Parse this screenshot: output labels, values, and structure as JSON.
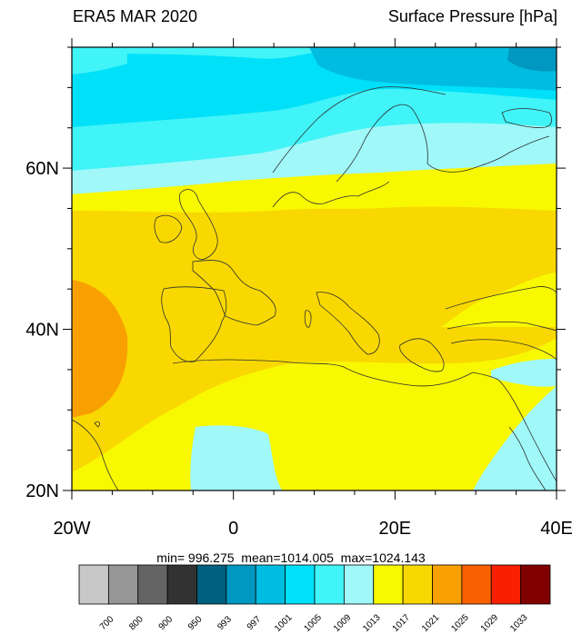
{
  "header": {
    "left_title": "ERA5 MAR 2020",
    "right_title": "Surface Pressure [hPa]"
  },
  "map": {
    "lon_ticks": [
      {
        "value": -20,
        "label": "20W"
      },
      {
        "value": 0,
        "label": "0"
      },
      {
        "value": 20,
        "label": "20E"
      },
      {
        "value": 40,
        "label": "40E"
      }
    ],
    "lat_ticks": [
      {
        "value": 20,
        "label": "20N"
      },
      {
        "value": 40,
        "label": "40N"
      },
      {
        "value": 60,
        "label": "60N"
      }
    ],
    "lon_range": [
      -20,
      40
    ],
    "lat_range": [
      20,
      75
    ]
  },
  "stats": {
    "text": "min= 996.275  mean=1014.005  max=1024.143"
  },
  "colorbar": {
    "levels": [
      "700",
      "800",
      "900",
      "950",
      "993",
      "997",
      "1001",
      "1005",
      "1009",
      "1013",
      "1017",
      "1021",
      "1025",
      "1029",
      "1033"
    ],
    "colors": [
      "#c8c8c8",
      "#969696",
      "#646464",
      "#323232",
      "#006080",
      "#0098c0",
      "#00bce0",
      "#00e0f8",
      "#40f4f8",
      "#a0f8f8",
      "#f8f800",
      "#f8d800",
      "#f8a000",
      "#f86000",
      "#f82000",
      "#800000"
    ]
  }
}
